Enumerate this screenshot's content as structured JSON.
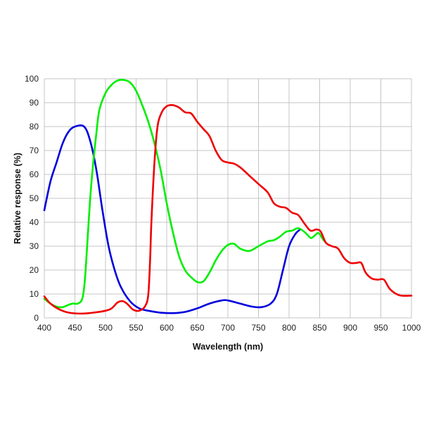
{
  "chart_data": {
    "type": "line",
    "title": "",
    "xlabel": "Wavelength (nm)",
    "ylabel": "Relative response (%)",
    "xlim": [
      400,
      1000
    ],
    "ylim": [
      0,
      100
    ],
    "grid": true,
    "xticks": [
      400,
      450,
      500,
      550,
      600,
      650,
      700,
      750,
      800,
      850,
      900,
      950,
      1000
    ],
    "yticks": [
      0,
      10,
      20,
      30,
      40,
      50,
      60,
      70,
      80,
      90,
      100
    ],
    "series": [
      {
        "color": "#0000dd",
        "points": [
          [
            400,
            45
          ],
          [
            410,
            57
          ],
          [
            420,
            65
          ],
          [
            430,
            73
          ],
          [
            440,
            78
          ],
          [
            450,
            80
          ],
          [
            465,
            80
          ],
          [
            475,
            74
          ],
          [
            485,
            62
          ],
          [
            495,
            45
          ],
          [
            505,
            30
          ],
          [
            515,
            20
          ],
          [
            525,
            13
          ],
          [
            540,
            7
          ],
          [
            555,
            4
          ],
          [
            570,
            3
          ],
          [
            590,
            2.2
          ],
          [
            610,
            2
          ],
          [
            630,
            2.5
          ],
          [
            650,
            4
          ],
          [
            670,
            6
          ],
          [
            690,
            7.3
          ],
          [
            700,
            7.3
          ],
          [
            720,
            6
          ],
          [
            740,
            4.7
          ],
          [
            755,
            4.5
          ],
          [
            770,
            6
          ],
          [
            780,
            10
          ],
          [
            790,
            20
          ],
          [
            800,
            30
          ],
          [
            810,
            35
          ],
          [
            818,
            37
          ]
        ]
      },
      {
        "color": "#00ee00",
        "points": [
          [
            400,
            8
          ],
          [
            410,
            6
          ],
          [
            420,
            4.7
          ],
          [
            430,
            4.5
          ],
          [
            440,
            5.5
          ],
          [
            447,
            6
          ],
          [
            455,
            6
          ],
          [
            462,
            8
          ],
          [
            466,
            15
          ],
          [
            470,
            30
          ],
          [
            475,
            50
          ],
          [
            480,
            65
          ],
          [
            485,
            77
          ],
          [
            490,
            87
          ],
          [
            500,
            94
          ],
          [
            510,
            97.5
          ],
          [
            520,
            99.3
          ],
          [
            530,
            99.5
          ],
          [
            540,
            98.5
          ],
          [
            550,
            95
          ],
          [
            560,
            89
          ],
          [
            570,
            82
          ],
          [
            580,
            73
          ],
          [
            590,
            62
          ],
          [
            600,
            48
          ],
          [
            610,
            36
          ],
          [
            620,
            26
          ],
          [
            630,
            20
          ],
          [
            640,
            17
          ],
          [
            650,
            15
          ],
          [
            660,
            15.3
          ],
          [
            670,
            19
          ],
          [
            680,
            24
          ],
          [
            690,
            28
          ],
          [
            700,
            30.5
          ],
          [
            710,
            31
          ],
          [
            720,
            29
          ],
          [
            735,
            28
          ],
          [
            750,
            30
          ],
          [
            765,
            32
          ],
          [
            775,
            32.5
          ],
          [
            785,
            34
          ],
          [
            795,
            36
          ],
          [
            805,
            36.5
          ],
          [
            815,
            37.5
          ],
          [
            825,
            36
          ],
          [
            835,
            33.5
          ],
          [
            840,
            34
          ],
          [
            848,
            35.5
          ],
          [
            855,
            33
          ],
          [
            860,
            31.5
          ]
        ]
      },
      {
        "color": "#ee0000",
        "points": [
          [
            400,
            9
          ],
          [
            410,
            6
          ],
          [
            425,
            3.5
          ],
          [
            440,
            2.2
          ],
          [
            460,
            1.8
          ],
          [
            480,
            2.2
          ],
          [
            500,
            3
          ],
          [
            510,
            4
          ],
          [
            520,
            6.5
          ],
          [
            528,
            7
          ],
          [
            535,
            6
          ],
          [
            545,
            3.5
          ],
          [
            555,
            3
          ],
          [
            565,
            5
          ],
          [
            570,
            10
          ],
          [
            573,
            25
          ],
          [
            575,
            40
          ],
          [
            580,
            65
          ],
          [
            585,
            80
          ],
          [
            592,
            86
          ],
          [
            600,
            88.5
          ],
          [
            610,
            89
          ],
          [
            620,
            88
          ],
          [
            630,
            86
          ],
          [
            640,
            85.5
          ],
          [
            650,
            82
          ],
          [
            660,
            79
          ],
          [
            670,
            76
          ],
          [
            680,
            70
          ],
          [
            690,
            66
          ],
          [
            700,
            65
          ],
          [
            710,
            64.5
          ],
          [
            720,
            63
          ],
          [
            735,
            59.5
          ],
          [
            750,
            56
          ],
          [
            765,
            52.5
          ],
          [
            775,
            48
          ],
          [
            785,
            46.5
          ],
          [
            795,
            46
          ],
          [
            805,
            44
          ],
          [
            815,
            43
          ],
          [
            825,
            39.5
          ],
          [
            835,
            36.5
          ],
          [
            845,
            37
          ],
          [
            852,
            36
          ],
          [
            860,
            31.5
          ],
          [
            870,
            30
          ],
          [
            880,
            29
          ],
          [
            890,
            25
          ],
          [
            900,
            23
          ],
          [
            910,
            23
          ],
          [
            918,
            23
          ],
          [
            925,
            19
          ],
          [
            935,
            16.5
          ],
          [
            945,
            16
          ],
          [
            955,
            16
          ],
          [
            965,
            12
          ],
          [
            980,
            9.5
          ],
          [
            1000,
            9.3
          ]
        ]
      }
    ]
  }
}
